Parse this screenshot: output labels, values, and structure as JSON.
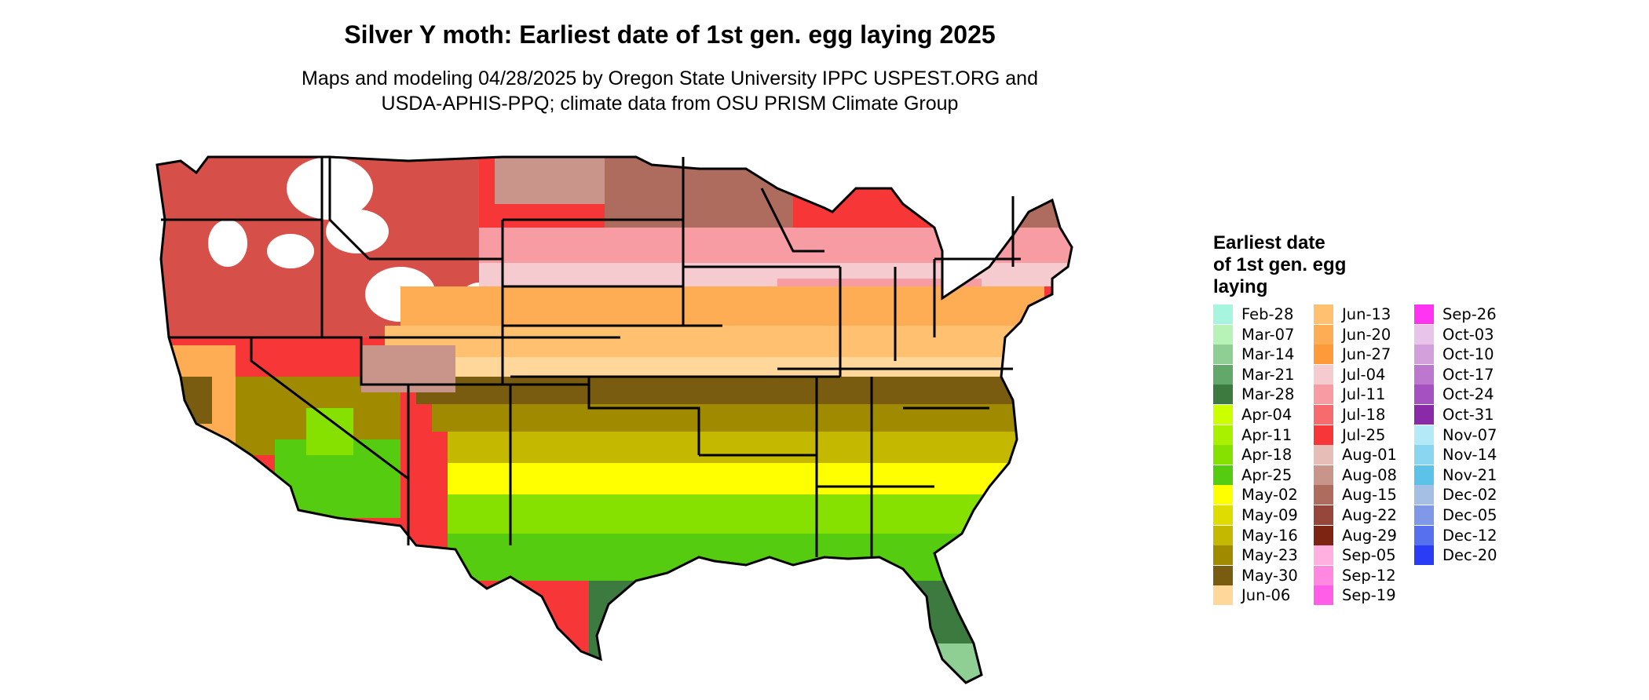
{
  "title": "Silver Y moth: Earliest date of 1st gen. egg laying 2025",
  "subtitle_line1": "Maps and modeling 04/28/2025 by Oregon State University IPPC USPEST.ORG and",
  "subtitle_line2": "USDA-APHIS-PPQ; climate data from OSU PRISM Climate Group",
  "legend": {
    "title_lines": [
      "Earliest date",
      "of 1st gen. egg",
      "laying"
    ],
    "items": [
      {
        "label": "Feb-28",
        "color": "#a8f5df"
      },
      {
        "label": "Mar-07",
        "color": "#b7f2b7"
      },
      {
        "label": "Mar-14",
        "color": "#8fcf94"
      },
      {
        "label": "Mar-21",
        "color": "#62a86b"
      },
      {
        "label": "Mar-28",
        "color": "#3c7a3f"
      },
      {
        "label": "Apr-04",
        "color": "#ccff00"
      },
      {
        "label": "Apr-11",
        "color": "#a9ef00"
      },
      {
        "label": "Apr-18",
        "color": "#86e000"
      },
      {
        "label": "Apr-25",
        "color": "#55cc10"
      },
      {
        "label": "May-02",
        "color": "#ffff00"
      },
      {
        "label": "May-09",
        "color": "#e0dc00"
      },
      {
        "label": "May-16",
        "color": "#c4b800"
      },
      {
        "label": "May-23",
        "color": "#a08a00"
      },
      {
        "label": "May-30",
        "color": "#7a5c10"
      },
      {
        "label": "Jun-06",
        "color": "#ffd79a"
      },
      {
        "label": "Jun-13",
        "color": "#ffc170"
      },
      {
        "label": "Jun-20",
        "color": "#ffad55"
      },
      {
        "label": "Jun-27",
        "color": "#ff9a3a"
      },
      {
        "label": "Jul-04",
        "color": "#f5cbd0"
      },
      {
        "label": "Jul-11",
        "color": "#f79ca2"
      },
      {
        "label": "Jul-18",
        "color": "#f76b6e"
      },
      {
        "label": "Jul-25",
        "color": "#f73737"
      },
      {
        "label": "Aug-01",
        "color": "#e6bdb7"
      },
      {
        "label": "Aug-08",
        "color": "#c9958a"
      },
      {
        "label": "Aug-15",
        "color": "#ad6c5e"
      },
      {
        "label": "Aug-22",
        "color": "#96463a"
      },
      {
        "label": "Aug-29",
        "color": "#7d2412"
      },
      {
        "label": "Sep-05",
        "color": "#ffb0e0"
      },
      {
        "label": "Sep-12",
        "color": "#ff88e0"
      },
      {
        "label": "Sep-19",
        "color": "#ff5ee8"
      },
      {
        "label": "Sep-26",
        "color": "#ff33f2"
      },
      {
        "label": "Oct-03",
        "color": "#e8c4ea"
      },
      {
        "label": "Oct-10",
        "color": "#d3a0dc"
      },
      {
        "label": "Oct-17",
        "color": "#bd77cf"
      },
      {
        "label": "Oct-24",
        "color": "#a651c1"
      },
      {
        "label": "Oct-31",
        "color": "#8a2aa8"
      },
      {
        "label": "Nov-07",
        "color": "#b4eaf7"
      },
      {
        "label": "Nov-14",
        "color": "#8ad6f0"
      },
      {
        "label": "Nov-21",
        "color": "#5cc2e8"
      },
      {
        "label": "Dec-02",
        "color": "#a4bfe3"
      },
      {
        "label": "Dec-05",
        "color": "#7f98e8"
      },
      {
        "label": "Dec-12",
        "color": "#5670ee"
      },
      {
        "label": "Dec-20",
        "color": "#2a3cf6"
      }
    ]
  },
  "map": {
    "colors": {
      "north_red": "#f73737",
      "pink": "#f79ca2",
      "light_pink": "#f5cbd0",
      "brown_north": "#ad6c5e",
      "tan_brown": "#c9958a",
      "orange": "#ffad55",
      "light_orange": "#ffc170",
      "peach": "#ffd79a",
      "olive_dark": "#7a5c10",
      "olive": "#a08a00",
      "yellow_olive": "#c4b800",
      "yellow": "#ffff00",
      "lime": "#86e000",
      "green": "#55cc10",
      "dark_green": "#3c7a3f",
      "mint": "#8fcf94",
      "white": "#ffffff"
    }
  }
}
